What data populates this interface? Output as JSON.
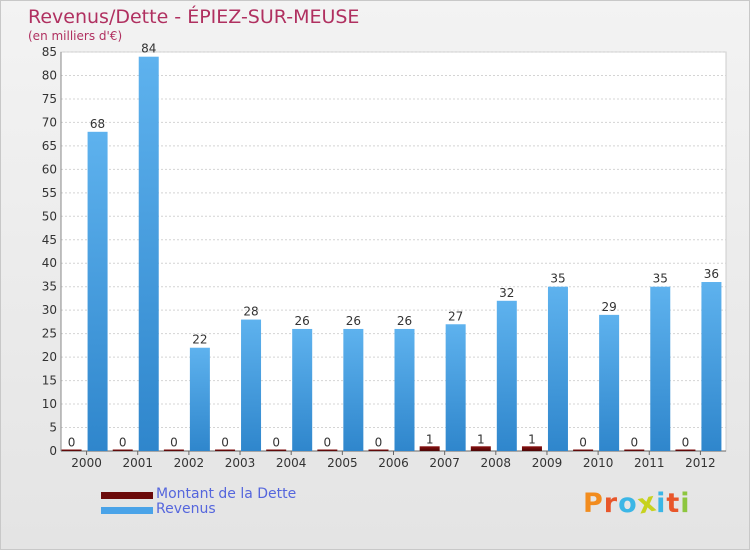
{
  "chart_data": {
    "type": "bar",
    "title": "Revenus/Dette - ÉPIEZ-SUR-MEUSE",
    "subtitle": "(en milliers d'€)",
    "categories": [
      "2000",
      "2001",
      "2002",
      "2003",
      "2004",
      "2005",
      "2006",
      "2007",
      "2008",
      "2009",
      "2010",
      "2011",
      "2012"
    ],
    "series": [
      {
        "name": "Montant de la Dette",
        "color": "#6b0a0a",
        "values": [
          0,
          0,
          0,
          0,
          0,
          0,
          0,
          1,
          1,
          1,
          0,
          0,
          0
        ]
      },
      {
        "name": "Revenus",
        "color": "#4aa3e8",
        "values": [
          68,
          84,
          22,
          28,
          26,
          26,
          26,
          27,
          32,
          35,
          29,
          35,
          36
        ]
      }
    ],
    "ylim": [
      0,
      85
    ],
    "yticks": [
      0,
      5,
      10,
      15,
      20,
      25,
      30,
      35,
      40,
      45,
      50,
      55,
      60,
      65,
      70,
      75,
      80,
      85
    ],
    "grid": true,
    "legend": "bottom-left"
  },
  "logo": {
    "text": "Proxiti",
    "letters": [
      {
        "ch": "P",
        "color": "#f28c1e"
      },
      {
        "ch": "r",
        "color": "#e8562a"
      },
      {
        "ch": "o",
        "color": "#3bb6e6"
      },
      {
        "ch": "x",
        "color": "#c7d21f"
      },
      {
        "ch": "i",
        "color": "#3bb6e6"
      },
      {
        "ch": "t",
        "color": "#e8562a"
      },
      {
        "ch": "i",
        "color": "#8dc63f"
      }
    ]
  }
}
